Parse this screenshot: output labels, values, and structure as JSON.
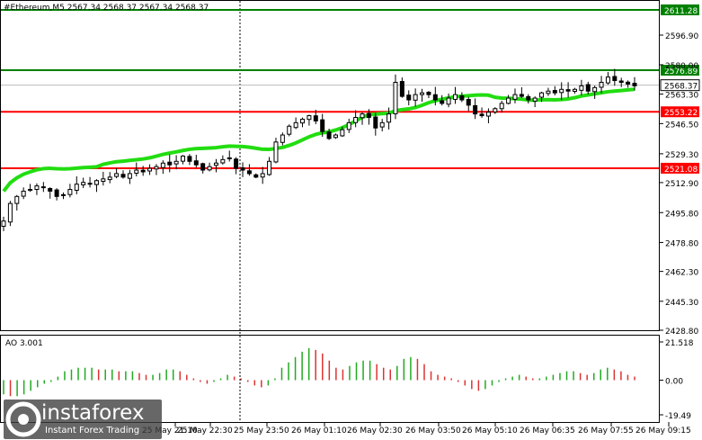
{
  "chart_data": [
    {
      "type": "candlestick",
      "title": "#Ethereum,M5  2567.34 2568.37 2567.34 2568.37",
      "ylim": [
        2428.88,
        2616.5
      ],
      "y_ticks": [
        2596.9,
        2580.0,
        2563.3,
        2546.5,
        2529.3,
        2512.9,
        2495.8,
        2478.8,
        2462.3,
        2445.3,
        2428.8
      ],
      "y_tick_labels": [
        "2596.90",
        "2580.00",
        "2563.30",
        "2546.50",
        "2529.30",
        "2512.90",
        "2495.80",
        "2478.80",
        "2462.30",
        "2445.30",
        "2428.80"
      ],
      "x_labels": [
        "25 May 21:10",
        "25 May 22:30",
        "25 May 23:50",
        "26 May 01:10",
        "26 May 02:30",
        "26 May 03:50",
        "26 May 05:10",
        "26 May 06:35",
        "26 May 07:55",
        "26 May 09:15"
      ],
      "close_path": [
        2491,
        2501,
        2505,
        2508,
        2509,
        2511,
        2510,
        2508,
        2505,
        2506,
        2509,
        2512,
        2513,
        2512,
        2514,
        2515,
        2516,
        2518,
        2516,
        2518,
        2520,
        2519,
        2521,
        2522,
        2524,
        2523,
        2525,
        2528,
        2525,
        2523,
        2520,
        2522,
        2524,
        2526,
        2527,
        2521,
        2520,
        2518,
        2516,
        2518,
        2525,
        2536,
        2540,
        2545,
        2547,
        2549,
        2551,
        2548,
        2542,
        2538,
        2540,
        2543,
        2547,
        2550,
        2552,
        2550,
        2544,
        2547,
        2552,
        2570,
        2562,
        2560,
        2563,
        2564,
        2563,
        2560,
        2558,
        2561,
        2563,
        2560,
        2557,
        2552,
        2551,
        2553,
        2555,
        2558,
        2561,
        2563,
        2562,
        2560,
        2561,
        2564,
        2565,
        2564,
        2566,
        2565,
        2566,
        2568,
        2565,
        2567,
        2570,
        2573,
        2571,
        2570,
        2569,
        2568
      ],
      "ma_line": {
        "color": "#22dd11",
        "start": 2508,
        "end": 2566
      },
      "levels": [
        {
          "value": 2611.28,
          "label": "2611.28",
          "color": "#008000"
        },
        {
          "value": 2576.89,
          "label": "2576.89",
          "color": "#008000"
        },
        {
          "value": 2553.22,
          "label": "2553.22",
          "color": "#ff0000"
        },
        {
          "value": 2521.08,
          "label": "2521.08",
          "color": "#ff0000"
        }
      ],
      "current_price": {
        "value": 2568.37,
        "label": "2568.37"
      },
      "bull_color": "#ffffff",
      "bear_color": "#000000",
      "grid": false,
      "vertical_marker_label": "25 May 23:50"
    },
    {
      "type": "bar",
      "title": "AO 3.001",
      "ylim": [
        -19.49,
        21.518
      ],
      "y_tick_labels": [
        "21.518",
        "0.00",
        "-19.49"
      ],
      "values": [
        -8,
        -9,
        -9,
        -8,
        -6,
        -4,
        -2,
        -1,
        2,
        5,
        6,
        7,
        7,
        7,
        6,
        6,
        6,
        5,
        5,
        5,
        4,
        3,
        3,
        4,
        6,
        6,
        5,
        3,
        1,
        -1,
        -2,
        -1,
        1,
        3,
        2,
        1,
        -1,
        -3,
        -4,
        -3,
        1,
        7,
        10,
        13,
        16,
        18,
        17,
        15,
        11,
        7,
        6,
        8,
        10,
        11,
        11,
        9,
        7,
        6,
        8,
        12,
        13,
        12,
        9,
        5,
        3,
        2,
        1,
        -1,
        -3,
        -5,
        -6,
        -5,
        -3,
        -1,
        1,
        2,
        3,
        2,
        1,
        1,
        2,
        3,
        4,
        5,
        5,
        4,
        3,
        4,
        6,
        7,
        6,
        5,
        3,
        2
      ],
      "up_color": "#22aa22",
      "down_color": "#dd3333"
    }
  ],
  "watermark": {
    "name": "instaforex",
    "tagline": "Instant Forex Trading"
  }
}
